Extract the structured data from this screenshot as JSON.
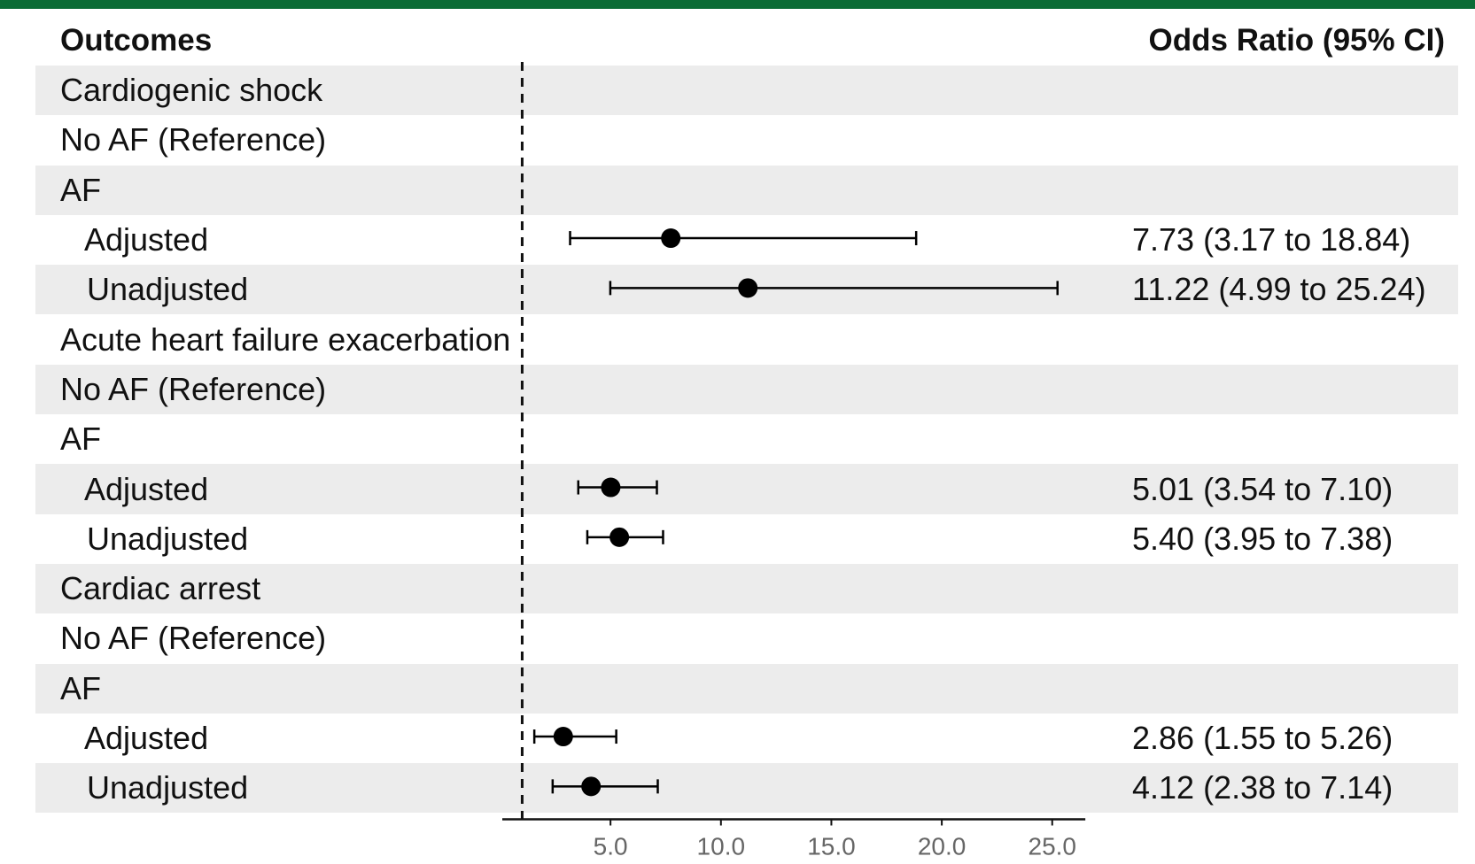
{
  "header": {
    "outcomes_label": "Outcomes",
    "or_label": "Odds Ratio (95% CI)"
  },
  "colors": {
    "top_bar": "#0b6b35",
    "row_shade": "#ececec",
    "marker": "#000000",
    "axis_tick_text": "#666666"
  },
  "rows": [
    {
      "label": "Cardiogenic shock",
      "level": 0,
      "shaded": true,
      "ci_text": ""
    },
    {
      "label": "No AF (Reference)",
      "level": 0,
      "shaded": false,
      "ci_text": ""
    },
    {
      "label": "AF",
      "level": 0,
      "shaded": true,
      "ci_text": ""
    },
    {
      "label": "Adjusted",
      "level": 1,
      "shaded": false,
      "ci_text": "7.73 (3.17 to 18.84)"
    },
    {
      "label": "Unadjusted",
      "level": 2,
      "shaded": true,
      "ci_text": "11.22 (4.99 to 25.24)"
    },
    {
      "label": "Acute heart failure exacerbation",
      "level": 0,
      "shaded": false,
      "ci_text": ""
    },
    {
      "label": "No AF (Reference)",
      "level": 0,
      "shaded": true,
      "ci_text": ""
    },
    {
      "label": "AF",
      "level": 0,
      "shaded": false,
      "ci_text": ""
    },
    {
      "label": "Adjusted",
      "level": 1,
      "shaded": true,
      "ci_text": "5.01 (3.54 to 7.10)"
    },
    {
      "label": "Unadjusted",
      "level": 2,
      "shaded": false,
      "ci_text": "5.40 (3.95 to 7.38)"
    },
    {
      "label": "Cardiac arrest",
      "level": 0,
      "shaded": true,
      "ci_text": ""
    },
    {
      "label": "No AF (Reference)",
      "level": 0,
      "shaded": false,
      "ci_text": ""
    },
    {
      "label": "AF",
      "level": 0,
      "shaded": true,
      "ci_text": ""
    },
    {
      "label": "Adjusted",
      "level": 1,
      "shaded": false,
      "ci_text": "2.86 (1.55 to 5.26)"
    },
    {
      "label": "Unadjusted",
      "level": 2,
      "shaded": true,
      "ci_text": "4.12 (2.38 to 7.14)"
    }
  ],
  "chart_data": {
    "type": "forest",
    "reference_line": 1.0,
    "xlim": [
      0.1,
      26.5
    ],
    "xticks": [
      5,
      10,
      15,
      20,
      25
    ],
    "xtick_labels": [
      "5.0",
      "10.0",
      "15.0",
      "20.0",
      "25.0"
    ],
    "points": [
      {
        "row": 3,
        "outcome": "Cardiogenic shock",
        "model": "Adjusted",
        "or": 7.73,
        "lower": 3.17,
        "upper": 18.84
      },
      {
        "row": 4,
        "outcome": "Cardiogenic shock",
        "model": "Unadjusted",
        "or": 11.22,
        "lower": 4.99,
        "upper": 25.24
      },
      {
        "row": 8,
        "outcome": "Acute heart failure exacerbation",
        "model": "Adjusted",
        "or": 5.01,
        "lower": 3.54,
        "upper": 7.1
      },
      {
        "row": 9,
        "outcome": "Acute heart failure exacerbation",
        "model": "Unadjusted",
        "or": 5.4,
        "lower": 3.95,
        "upper": 7.38
      },
      {
        "row": 13,
        "outcome": "Cardiac arrest",
        "model": "Adjusted",
        "or": 2.86,
        "lower": 1.55,
        "upper": 5.26
      },
      {
        "row": 14,
        "outcome": "Cardiac arrest",
        "model": "Unadjusted",
        "or": 4.12,
        "lower": 2.38,
        "upper": 7.14
      }
    ]
  }
}
